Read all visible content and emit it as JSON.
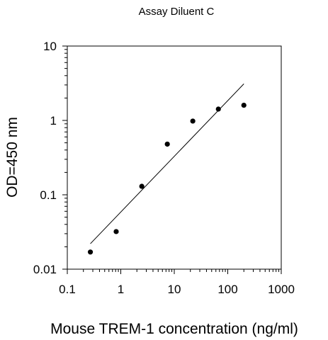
{
  "chart_data": {
    "type": "scatter",
    "title": "Assay Diluent C",
    "xlabel": "Mouse TREM-1 concentration (ng/ml)",
    "ylabel": "OD=450 nm",
    "x_scale": "log",
    "y_scale": "log",
    "xlim": [
      0.1,
      1000
    ],
    "ylim": [
      0.01,
      10
    ],
    "x_ticks": [
      0.1,
      1,
      10,
      100,
      1000
    ],
    "x_tick_labels": [
      "0.1",
      "1",
      "10",
      "100",
      "1000"
    ],
    "y_ticks": [
      0.01,
      0.1,
      1,
      10
    ],
    "y_tick_labels": [
      "0.01",
      "0.1",
      "1",
      "10"
    ],
    "grid": false,
    "legend": "none",
    "series": [
      {
        "points": [
          {
            "x": 0.27,
            "y": 0.017
          },
          {
            "x": 0.82,
            "y": 0.032
          },
          {
            "x": 2.47,
            "y": 0.13
          },
          {
            "x": 7.41,
            "y": 0.48
          },
          {
            "x": 22.2,
            "y": 0.98
          },
          {
            "x": 66.7,
            "y": 1.42
          },
          {
            "x": 200,
            "y": 1.6
          }
        ]
      }
    ],
    "fit_line": {
      "x": [
        0.27,
        200
      ],
      "y": [
        0.022,
        3.1
      ]
    }
  }
}
